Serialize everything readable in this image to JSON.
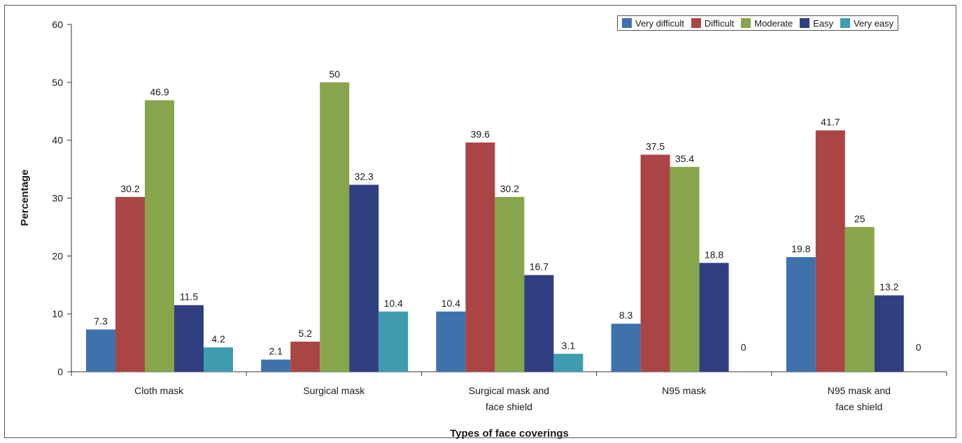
{
  "chart_data": {
    "type": "bar",
    "categories": [
      [
        "Cloth mask"
      ],
      [
        "Surgical mask"
      ],
      [
        "Surgical mask and",
        "face shield"
      ],
      [
        "N95 mask"
      ],
      [
        "N95 mask and",
        "face shield"
      ]
    ],
    "series": [
      {
        "name": "Very difficult",
        "color": "#3f72ab",
        "values": [
          7.3,
          2.1,
          10.4,
          8.3,
          19.8
        ]
      },
      {
        "name": "Difficult",
        "color": "#ab4545",
        "values": [
          30.2,
          5.2,
          39.6,
          37.5,
          41.7
        ]
      },
      {
        "name": "Moderate",
        "color": "#87a64b",
        "values": [
          46.9,
          50,
          30.2,
          35.4,
          25
        ]
      },
      {
        "name": "Easy",
        "color": "#2f3f80",
        "values": [
          11.5,
          32.3,
          16.7,
          18.8,
          13.2
        ]
      },
      {
        "name": "Very easy",
        "color": "#3f9bb0",
        "values": [
          4.2,
          10.4,
          3.1,
          0,
          0
        ]
      }
    ],
    "xlabel": "Types of face coverings",
    "ylabel": "Percentage",
    "ylim": [
      0,
      60
    ],
    "yticks": [
      0,
      10,
      20,
      30,
      40,
      50,
      60
    ],
    "grid": false,
    "legend": "top-right"
  }
}
